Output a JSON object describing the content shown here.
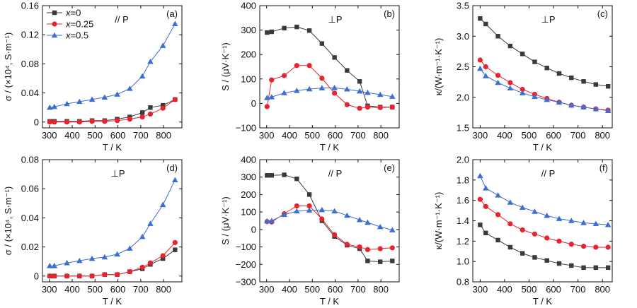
{
  "figure": {
    "series_styles": [
      {
        "key": "x0",
        "color": "#3a3a3a",
        "marker": "square"
      },
      {
        "key": "x025",
        "color": "#e8232e",
        "marker": "circle"
      },
      {
        "key": "x05",
        "color": "#3d6fd1",
        "marker": "triangle"
      }
    ],
    "legend_entries": [
      {
        "var": "x",
        "text": "=0"
      },
      {
        "var": "x",
        "text": "=0.25"
      },
      {
        "var": "x",
        "text": "=0.5"
      }
    ]
  },
  "chart_data": [
    {
      "id": "a",
      "type": "line",
      "panel_label": "(a)",
      "annotation": "// P",
      "xlabel": "T / K",
      "ylabel": "σ / (×10⁴, S·m⁻¹)",
      "xlim": [
        270,
        880
      ],
      "ylim": [
        -0.008,
        0.16
      ],
      "xticks": [
        300,
        400,
        500,
        600,
        700,
        800
      ],
      "yticks": [
        0,
        0.04,
        0.08,
        0.12,
        0.16
      ],
      "ytick_labels": [
        "0",
        "0.04",
        "0.08",
        "0.12",
        "0.16"
      ],
      "grid": false,
      "legend": "top-left",
      "series": [
        {
          "name": "x=0",
          "style": "x0",
          "x": [
            302,
            322,
            377,
            432,
            487,
            542,
            597,
            652,
            707,
            742,
            797,
            850
          ],
          "y": [
            0.001,
            0.001,
            0.001,
            0.001,
            0.002,
            0.002,
            0.004,
            0.007,
            0.013,
            0.02,
            0.023,
            0.031
          ]
        },
        {
          "name": "x=0.25",
          "style": "x025",
          "x": [
            302,
            322,
            377,
            432,
            487,
            542,
            597,
            652,
            707,
            742,
            797,
            850
          ],
          "y": [
            0,
            0,
            0,
            0,
            0.001,
            0.001,
            0.002,
            0.004,
            0.007,
            0.011,
            0.019,
            0.031
          ]
        },
        {
          "name": "x=0.5",
          "style": "x05",
          "x": [
            302,
            322,
            377,
            432,
            487,
            542,
            597,
            652,
            707,
            742,
            797,
            850
          ],
          "y": [
            0.02,
            0.021,
            0.025,
            0.028,
            0.031,
            0.034,
            0.038,
            0.046,
            0.063,
            0.083,
            0.105,
            0.135
          ]
        }
      ]
    },
    {
      "id": "b",
      "type": "line",
      "panel_label": "(b)",
      "annotation": "⊥P",
      "xlabel": "T / K",
      "ylabel": "S / (μV·K⁻¹)",
      "xlim": [
        270,
        880
      ],
      "ylim": [
        -100,
        400
      ],
      "xticks": [
        300,
        400,
        500,
        600,
        700,
        800
      ],
      "yticks": [
        -100,
        0,
        100,
        200,
        300,
        400
      ],
      "ytick_labels": [
        "−100",
        "0",
        "100",
        "200",
        "300",
        "400"
      ],
      "grid": false,
      "series": [
        {
          "name": "x=0",
          "style": "x0",
          "x": [
            302,
            322,
            377,
            432,
            487,
            542,
            597,
            652,
            707,
            742,
            797,
            850
          ],
          "y": [
            290,
            293,
            308,
            313,
            298,
            245,
            188,
            135,
            90,
            -10,
            -15,
            -15
          ]
        },
        {
          "name": "x=0.25",
          "style": "x025",
          "x": [
            302,
            322,
            377,
            432,
            487,
            542,
            597,
            652,
            707,
            742,
            797,
            850
          ],
          "y": [
            -13,
            96,
            114,
            155,
            155,
            103,
            42,
            -5,
            -20,
            -15,
            -17,
            -15
          ]
        },
        {
          "name": "x=0.5",
          "style": "x05",
          "x": [
            302,
            322,
            377,
            432,
            487,
            542,
            597,
            652,
            707,
            742,
            797,
            850
          ],
          "y": [
            23,
            26,
            43,
            52,
            59,
            63,
            64,
            58,
            50,
            44,
            36,
            28
          ]
        }
      ]
    },
    {
      "id": "c",
      "type": "line",
      "panel_label": "(c)",
      "annotation": "⊥P",
      "xlabel": "T / K",
      "ylabel": "κ/(W·m⁻¹·K⁻¹)",
      "xlim": [
        270,
        840
      ],
      "ylim": [
        1.5,
        3.5
      ],
      "xticks": [
        300,
        400,
        500,
        600,
        700,
        800
      ],
      "yticks": [
        1.5,
        2.0,
        2.5,
        3.0,
        3.5
      ],
      "ytick_labels": [
        "1.5",
        "2.0",
        "2.5",
        "3.0",
        "3.5"
      ],
      "grid": false,
      "series": [
        {
          "name": "x=0",
          "style": "x0",
          "x": [
            300,
            323,
            373,
            423,
            473,
            523,
            573,
            623,
            673,
            723,
            773,
            823
          ],
          "y": [
            3.29,
            3.2,
            3.0,
            2.84,
            2.71,
            2.58,
            2.48,
            2.39,
            2.32,
            2.26,
            2.21,
            2.18
          ]
        },
        {
          "name": "x=0.25",
          "style": "x025",
          "x": [
            300,
            323,
            373,
            423,
            473,
            523,
            573,
            623,
            673,
            723,
            773,
            823
          ],
          "y": [
            2.61,
            2.5,
            2.36,
            2.24,
            2.13,
            2.05,
            1.98,
            1.92,
            1.87,
            1.84,
            1.81,
            1.79
          ]
        },
        {
          "name": "x=0.5",
          "style": "x05",
          "x": [
            300,
            323,
            373,
            423,
            473,
            523,
            573,
            623,
            673,
            723,
            773,
            823
          ],
          "y": [
            2.47,
            2.35,
            2.24,
            2.15,
            2.07,
            2.01,
            1.96,
            1.92,
            1.87,
            1.84,
            1.81,
            1.78
          ]
        }
      ]
    },
    {
      "id": "d",
      "type": "line",
      "panel_label": "(d)",
      "annotation": "⊥P",
      "xlabel": "T / K",
      "ylabel": "σ / (×10⁴, S·m⁻¹)",
      "xlim": [
        270,
        880
      ],
      "ylim": [
        -0.004,
        0.08
      ],
      "xticks": [
        300,
        400,
        500,
        600,
        700,
        800
      ],
      "yticks": [
        0,
        0.02,
        0.04,
        0.06,
        0.08
      ],
      "ytick_labels": [
        "0",
        "0.02",
        "0.04",
        "0.06",
        "0.08"
      ],
      "grid": false,
      "series": [
        {
          "name": "x=0",
          "style": "x0",
          "x": [
            302,
            322,
            377,
            432,
            487,
            542,
            597,
            652,
            707,
            742,
            797,
            850
          ],
          "y": [
            0,
            0,
            0,
            0,
            0,
            0.001,
            0.001,
            0.003,
            0.005,
            0.008,
            0.012,
            0.018
          ]
        },
        {
          "name": "x=0.25",
          "style": "x025",
          "x": [
            302,
            322,
            377,
            432,
            487,
            542,
            597,
            652,
            707,
            742,
            797,
            850
          ],
          "y": [
            0,
            0,
            0,
            0,
            0,
            0.001,
            0.001,
            0.003,
            0.006,
            0.009,
            0.014,
            0.023
          ]
        },
        {
          "name": "x=0.5",
          "style": "x05",
          "x": [
            302,
            322,
            377,
            432,
            487,
            542,
            597,
            652,
            707,
            742,
            797,
            850
          ],
          "y": [
            0.007,
            0.007,
            0.009,
            0.0105,
            0.012,
            0.013,
            0.015,
            0.019,
            0.027,
            0.036,
            0.049,
            0.066
          ]
        }
      ]
    },
    {
      "id": "e",
      "type": "line",
      "panel_label": "(e)",
      "annotation": "// P",
      "xlabel": "T / K",
      "ylabel": "S / (μV·K⁻¹)",
      "xlim": [
        270,
        880
      ],
      "ylim": [
        -300,
        400
      ],
      "xticks": [
        300,
        400,
        500,
        600,
        700,
        800
      ],
      "yticks": [
        -300,
        -200,
        -100,
        0,
        100,
        200,
        300,
        400
      ],
      "ytick_labels": [
        "−300",
        "−200",
        "−100",
        "0",
        "100",
        "200",
        "300",
        "400"
      ],
      "grid": false,
      "series": [
        {
          "name": "x=0",
          "style": "x0",
          "x": [
            302,
            322,
            377,
            432,
            487,
            542,
            597,
            652,
            707,
            742,
            797,
            850
          ],
          "y": [
            310,
            310,
            313,
            290,
            200,
            50,
            -40,
            -90,
            -110,
            -180,
            -185,
            -180
          ]
        },
        {
          "name": "x=0.25",
          "style": "x025",
          "x": [
            302,
            322,
            377,
            432,
            487,
            542,
            597,
            652,
            707,
            742,
            797,
            850
          ],
          "y": [
            45,
            43,
            90,
            135,
            135,
            60,
            -30,
            -85,
            -100,
            -115,
            -110,
            -105
          ]
        },
        {
          "name": "x=0.5",
          "style": "x05",
          "x": [
            302,
            322,
            377,
            432,
            487,
            542,
            597,
            652,
            707,
            742,
            797,
            850
          ],
          "y": [
            48,
            50,
            85,
            105,
            110,
            112,
            105,
            80,
            55,
            40,
            15,
            -3
          ]
        }
      ]
    },
    {
      "id": "f",
      "type": "line",
      "panel_label": "(f)",
      "annotation": "// P",
      "xlabel": "T / K",
      "ylabel": "κ/(W·m⁻¹·K⁻¹)",
      "xlim": [
        270,
        840
      ],
      "ylim": [
        0.8,
        2.0
      ],
      "xticks": [
        300,
        400,
        500,
        600,
        700,
        800
      ],
      "yticks": [
        0.8,
        1.0,
        1.2,
        1.4,
        1.6,
        1.8,
        2.0
      ],
      "ytick_labels": [
        "0.8",
        "1.0",
        "1.2",
        "1.4",
        "1.6",
        "1.8",
        "2.0"
      ],
      "grid": false,
      "series": [
        {
          "name": "x=0",
          "style": "x0",
          "x": [
            300,
            323,
            373,
            423,
            473,
            523,
            573,
            623,
            673,
            723,
            773,
            823
          ],
          "y": [
            1.36,
            1.28,
            1.21,
            1.14,
            1.08,
            1.04,
            1.01,
            0.98,
            0.96,
            0.94,
            0.94,
            0.94
          ]
        },
        {
          "name": "x=0.25",
          "style": "x025",
          "x": [
            300,
            323,
            373,
            423,
            473,
            523,
            573,
            623,
            673,
            723,
            773,
            823
          ],
          "y": [
            1.61,
            1.54,
            1.46,
            1.37,
            1.31,
            1.27,
            1.23,
            1.2,
            1.17,
            1.15,
            1.14,
            1.14
          ]
        },
        {
          "name": "x=0.5",
          "style": "x05",
          "x": [
            300,
            323,
            373,
            423,
            473,
            523,
            573,
            623,
            673,
            723,
            773,
            823
          ],
          "y": [
            1.84,
            1.72,
            1.65,
            1.58,
            1.53,
            1.49,
            1.45,
            1.42,
            1.4,
            1.38,
            1.37,
            1.36
          ]
        }
      ]
    }
  ]
}
